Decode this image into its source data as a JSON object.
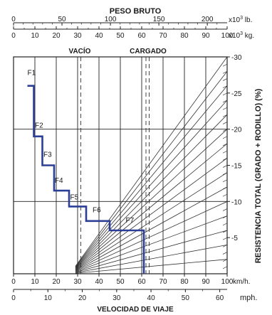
{
  "chart_data": {
    "type": "line",
    "title": "PESO BRUTO",
    "xlabel": "VELOCIDAD DE VIAJE",
    "ylabel": "RESISTENCIA TOTAL (GRADO + RODILLO) (%)",
    "top_axes": {
      "lb": {
        "unit_prefix": "x10",
        "unit_exp": "3",
        "unit_suffix": " lb.",
        "ticks": [
          "0",
          "50",
          "100",
          "150",
          "200"
        ]
      },
      "kg": {
        "unit_prefix": "x10",
        "unit_exp": "3",
        "unit_suffix": " kg.",
        "ticks": [
          "0",
          "10",
          "20",
          "30",
          "40",
          "50",
          "60",
          "70",
          "80",
          "90",
          "100"
        ]
      }
    },
    "load_labels": {
      "empty": "VACÍO",
      "loaded": "CARGADO"
    },
    "empty_weight_kg": 31,
    "loaded_weight_kg": 63,
    "kmh_axis": {
      "unit": "km/h.",
      "ticks": [
        "0",
        "10",
        "20",
        "30",
        "40",
        "50",
        "60",
        "70",
        "80",
        "90",
        "100"
      ],
      "range": [
        0,
        100
      ]
    },
    "mph_axis": {
      "unit": "mph.",
      "ticks": [
        "0",
        "10",
        "20",
        "30",
        "40",
        "50",
        "60"
      ]
    },
    "resistance_axis": {
      "ticks": [
        "5",
        "10",
        "15",
        "20",
        "25",
        "30"
      ],
      "range": [
        0,
        30
      ]
    },
    "gear_curve": [
      {
        "speed": 6.5,
        "resistance": 26.0
      },
      {
        "speed": 9.5,
        "resistance": 26.0
      },
      {
        "speed": 9.5,
        "resistance": 19.0
      },
      {
        "speed": 13.5,
        "resistance": 19.0
      },
      {
        "speed": 13.5,
        "resistance": 15.0
      },
      {
        "speed": 19.0,
        "resistance": 15.0
      },
      {
        "speed": 19.0,
        "resistance": 11.5
      },
      {
        "speed": 26.0,
        "resistance": 11.5
      },
      {
        "speed": 26.0,
        "resistance": 9.3
      },
      {
        "speed": 34.0,
        "resistance": 9.3
      },
      {
        "speed": 34.0,
        "resistance": 7.3
      },
      {
        "speed": 45.0,
        "resistance": 7.3
      },
      {
        "speed": 45.0,
        "resistance": 6.0
      },
      {
        "speed": 61.0,
        "resistance": 6.0
      },
      {
        "speed": 61.0,
        "resistance": 0
      }
    ],
    "gears": [
      {
        "label": "F1",
        "speed": 6.5,
        "resistance": 27.5
      },
      {
        "label": "F2",
        "speed": 10.0,
        "resistance": 20.2
      },
      {
        "label": "F3",
        "speed": 14.0,
        "resistance": 16.2
      },
      {
        "label": "F4",
        "speed": 19.3,
        "resistance": 12.6
      },
      {
        "label": "F5",
        "speed": 26.5,
        "resistance": 10.3
      },
      {
        "label": "F6",
        "speed": 37.0,
        "resistance": 8.5
      },
      {
        "label": "F7",
        "speed": 52.5,
        "resistance": 7.1
      }
    ],
    "resistance_fan": [
      2,
      4,
      6,
      8,
      10,
      12,
      14,
      16,
      18,
      20,
      22,
      24,
      26,
      28,
      30
    ]
  }
}
